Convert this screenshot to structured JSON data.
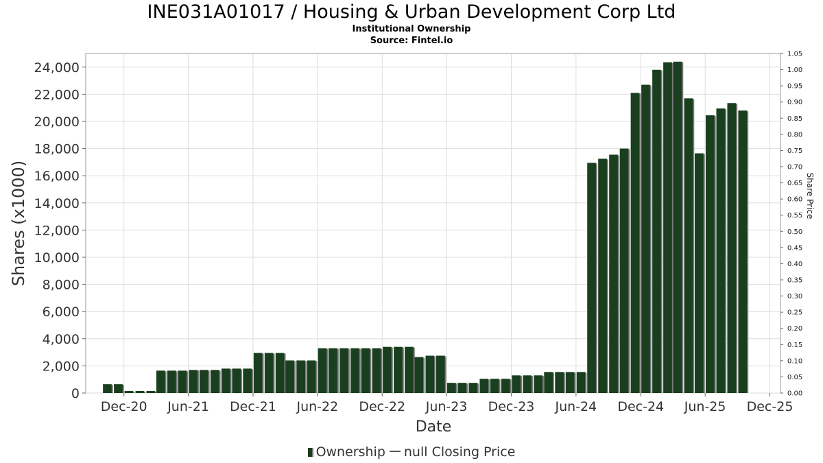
{
  "header": {
    "title": "INE031A01017 / Housing & Urban Development Corp Ltd",
    "subtitle1": "Institutional Ownership",
    "subtitle2": "Source: Fintel.io"
  },
  "legend": {
    "ownership_label": "Ownership",
    "price_label": "null Closing Price"
  },
  "colors": {
    "bar": "#1a3f1f",
    "bar_shadow": "#7b7b7b",
    "grid": "#dddddd"
  },
  "chart_data": {
    "type": "bar",
    "title": "INE031A01017 / Housing & Urban Development Corp Ltd",
    "xlabel": "Date",
    "ylabel": "Shares (x1000)",
    "y2label": "Share Price",
    "ylim": [
      0,
      25000
    ],
    "y2lim": [
      0,
      1.05
    ],
    "yticks": [
      0,
      2000,
      4000,
      6000,
      8000,
      10000,
      12000,
      14000,
      16000,
      18000,
      20000,
      22000,
      24000
    ],
    "ytick_labels": [
      "0",
      "2,000",
      "4,000",
      "6,000",
      "8,000",
      "10,000",
      "12,000",
      "14,000",
      "16,000",
      "18,000",
      "20,000",
      "22,000",
      "24,000"
    ],
    "y2ticks": [
      "0.00",
      "0.05",
      "0.10",
      "0.15",
      "0.20",
      "0.25",
      "0.30",
      "0.35",
      "0.40",
      "0.45",
      "0.50",
      "0.55",
      "0.60",
      "0.65",
      "0.70",
      "0.75",
      "0.80",
      "0.85",
      "0.90",
      "0.95",
      "1.00",
      "1.05"
    ],
    "xlim": [
      "2020-08-15",
      "2025-12-31"
    ],
    "xticks": [
      "2020-12-01",
      "2021-06-01",
      "2021-12-01",
      "2022-06-01",
      "2022-12-01",
      "2023-06-01",
      "2023-12-01",
      "2024-06-01",
      "2024-12-01",
      "2025-06-01",
      "2025-12-01"
    ],
    "xtick_labels": [
      "Dec-20",
      "Jun-21",
      "Dec-21",
      "Jun-22",
      "Dec-22",
      "Jun-23",
      "Dec-23",
      "Jun-24",
      "Dec-24",
      "Jun-25",
      "Dec-25"
    ],
    "grid": true,
    "legend_position": "bottom",
    "series": [
      {
        "name": "Ownership",
        "x": [
          "2020-10-15",
          "2020-11-15",
          "2020-12-15",
          "2021-01-15",
          "2021-02-15",
          "2021-03-15",
          "2021-04-15",
          "2021-05-15",
          "2021-06-15",
          "2021-07-15",
          "2021-08-15",
          "2021-09-15",
          "2021-10-15",
          "2021-11-15",
          "2021-12-15",
          "2022-01-15",
          "2022-02-15",
          "2022-03-15",
          "2022-04-15",
          "2022-05-15",
          "2022-06-15",
          "2022-07-15",
          "2022-08-15",
          "2022-09-15",
          "2022-10-15",
          "2022-11-15",
          "2022-12-15",
          "2023-01-15",
          "2023-02-15",
          "2023-03-15",
          "2023-04-15",
          "2023-05-15",
          "2023-06-15",
          "2023-07-15",
          "2023-08-15",
          "2023-09-15",
          "2023-10-15",
          "2023-11-15",
          "2023-12-15",
          "2024-01-15",
          "2024-02-15",
          "2024-03-15",
          "2024-04-15",
          "2024-05-15",
          "2024-06-15",
          "2024-07-15",
          "2024-08-15",
          "2024-09-15",
          "2024-10-15",
          "2024-11-15",
          "2024-12-15",
          "2025-01-15",
          "2025-02-15",
          "2025-03-15",
          "2025-04-15",
          "2025-05-15",
          "2025-06-15",
          "2025-07-15",
          "2025-08-15",
          "2025-09-15"
        ],
        "values": [
          650,
          650,
          150,
          150,
          150,
          1650,
          1650,
          1650,
          1700,
          1700,
          1700,
          1800,
          1800,
          1800,
          2950,
          2950,
          2950,
          2400,
          2400,
          2400,
          3300,
          3300,
          3300,
          3300,
          3300,
          3300,
          3400,
          3400,
          3400,
          2650,
          2750,
          2750,
          750,
          750,
          750,
          1050,
          1050,
          1050,
          1300,
          1300,
          1300,
          1550,
          1550,
          1550,
          1550,
          16950,
          17250,
          17550,
          18000,
          22100,
          22700,
          23800,
          24350,
          24400,
          21700,
          17650,
          20450,
          20950,
          21350,
          20800
        ]
      }
    ]
  }
}
